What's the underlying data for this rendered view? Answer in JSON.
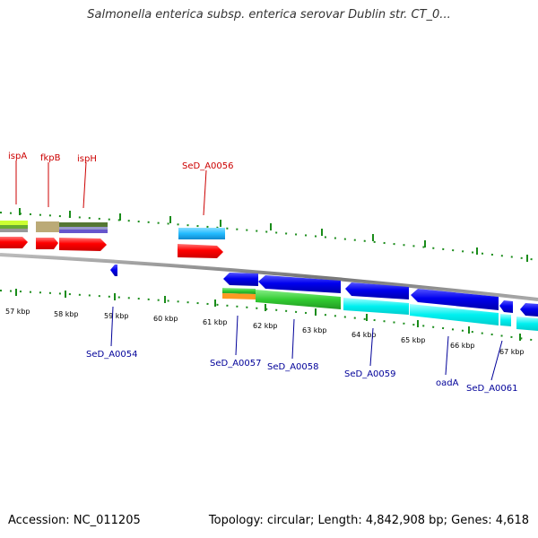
{
  "title": "Salmonella enterica subsp. enterica serovar Dublin str. CT_0...",
  "accession": "Accession: NC_011205",
  "genome_stats": "Topology: circular; Length: 4,842,908 bp; Genes: 4,618",
  "colors": {
    "forward_label": "#cc0000",
    "reverse_label": "#000099",
    "backbone": "#888888",
    "tick": "#1a8c1a",
    "cds_forward": "#ff0000",
    "cds_reverse": "#0000ee",
    "cyan_track": "#00ffff",
    "green_track": "#33cc33",
    "light_blue_track": "#22bbff"
  },
  "forward_labels": [
    "ispA",
    "fkpB",
    "ispH",
    "SeD_A0056"
  ],
  "reverse_labels": [
    "SeD_A0054",
    "SeD_A0057",
    "SeD_A0058",
    "SeD_A0059",
    "oadA",
    "SeD_A0061"
  ],
  "kbp_labels": [
    "57 kbp",
    "58 kbp",
    "59 kbp",
    "60 kbp",
    "61 kbp",
    "62 kbp",
    "63 kbp",
    "64 kbp",
    "65 kbp",
    "66 kbp",
    "67 kbp"
  ]
}
